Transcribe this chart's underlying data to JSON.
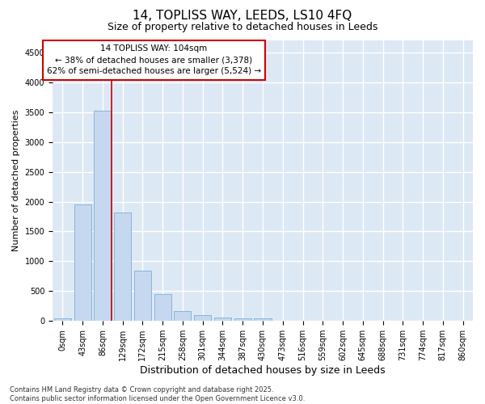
{
  "title1": "14, TOPLISS WAY, LEEDS, LS10 4FQ",
  "title2": "Size of property relative to detached houses in Leeds",
  "xlabel": "Distribution of detached houses by size in Leeds",
  "ylabel": "Number of detached properties",
  "categories": [
    "0sqm",
    "43sqm",
    "86sqm",
    "129sqm",
    "172sqm",
    "215sqm",
    "258sqm",
    "301sqm",
    "344sqm",
    "387sqm",
    "430sqm",
    "473sqm",
    "516sqm",
    "559sqm",
    "602sqm",
    "645sqm",
    "688sqm",
    "731sqm",
    "774sqm",
    "817sqm",
    "860sqm"
  ],
  "values": [
    40,
    1950,
    3520,
    1820,
    850,
    450,
    165,
    100,
    55,
    50,
    40,
    0,
    0,
    0,
    0,
    0,
    0,
    0,
    0,
    0,
    0
  ],
  "bar_color": "#c5d8f0",
  "bar_edge_color": "#7aafd4",
  "vline_x": 2.45,
  "annotation_line1": "14 TOPLISS WAY: 104sqm",
  "annotation_line2": "← 38% of detached houses are smaller (3,378)",
  "annotation_line3": "62% of semi-detached houses are larger (5,524) →",
  "annotation_box_color": "#ffffff",
  "annotation_border_color": "#cc0000",
  "ylim": [
    0,
    4700
  ],
  "yticks": [
    0,
    500,
    1000,
    1500,
    2000,
    2500,
    3000,
    3500,
    4000,
    4500
  ],
  "background_color": "#dde8f5",
  "grid_color": "#ffffff",
  "footer_text": "Contains HM Land Registry data © Crown copyright and database right 2025.\nContains public sector information licensed under the Open Government Licence v3.0.",
  "title1_fontsize": 11,
  "title2_fontsize": 9,
  "xlabel_fontsize": 9,
  "ylabel_fontsize": 8,
  "tick_fontsize": 7,
  "annotation_fontsize": 7.5,
  "footer_fontsize": 6
}
